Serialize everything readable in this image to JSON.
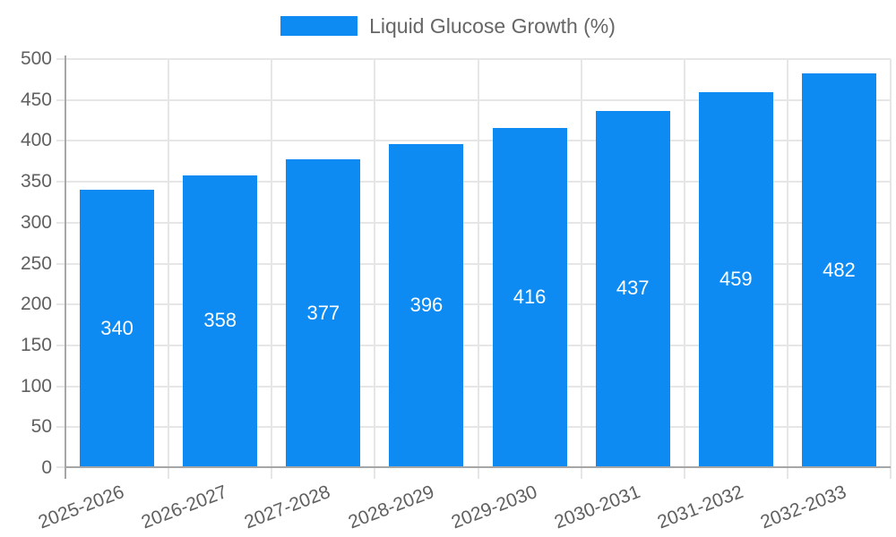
{
  "legend": {
    "label": "Liquid Glucose Growth (%)"
  },
  "colors": {
    "bar": "#0d8bf2",
    "axis": "#a6a6a6",
    "grid": "#e6e6e6",
    "tick_label": "#606060",
    "legend_label": "#666666",
    "value_label": "#ffffff"
  },
  "chart_data": {
    "type": "bar",
    "title": "",
    "xlabel": "",
    "ylabel": "",
    "categories": [
      "2025-2026",
      "2026-2027",
      "2027-2028",
      "2028-2029",
      "2029-2030",
      "2030-2031",
      "2031-2032",
      "2032-2033"
    ],
    "series": [
      {
        "name": "Liquid Glucose Growth (%)",
        "values": [
          340,
          358,
          377,
          396,
          416,
          437,
          459,
          482
        ]
      }
    ],
    "ylim": [
      0,
      500
    ],
    "yticks": [
      0,
      50,
      100,
      150,
      200,
      250,
      300,
      350,
      400,
      450,
      500
    ],
    "grid": true,
    "legend_position": "top-center",
    "value_label_position": "inside-center",
    "xtick_rotation_deg": -21
  }
}
